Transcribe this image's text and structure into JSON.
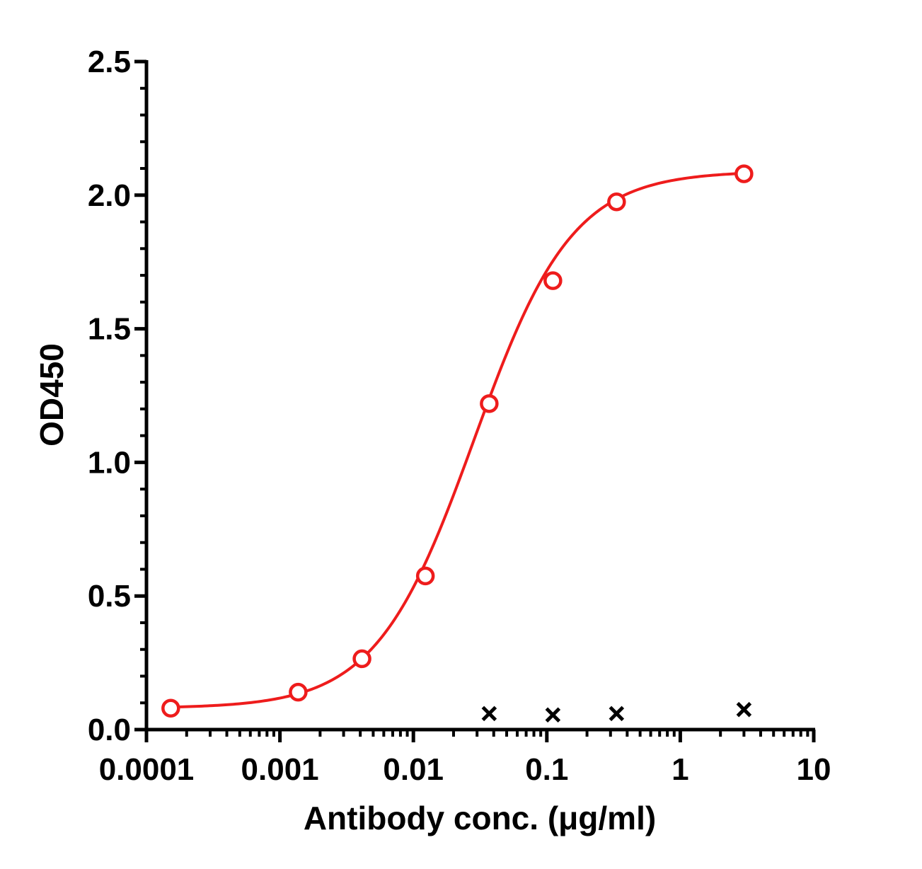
{
  "chart_data": {
    "type": "scatter",
    "title": "",
    "xlabel": "Antibody conc. (μg/ml)",
    "ylabel": "OD450",
    "x_scale": "log",
    "xlim": [
      0.0001,
      10
    ],
    "ylim": [
      0,
      2.5
    ],
    "x_ticks": [
      {
        "value": 0.0001,
        "label": "0.0001"
      },
      {
        "value": 0.001,
        "label": "0.001"
      },
      {
        "value": 0.01,
        "label": "0.01"
      },
      {
        "value": 0.1,
        "label": "0.1"
      },
      {
        "value": 1,
        "label": "1"
      },
      {
        "value": 10,
        "label": "10"
      }
    ],
    "y_ticks": [
      {
        "value": 0,
        "label": "0.0"
      },
      {
        "value": 0.5,
        "label": "0.5"
      },
      {
        "value": 1.0,
        "label": "1.0"
      },
      {
        "value": 1.5,
        "label": "1.5"
      },
      {
        "value": 2.0,
        "label": "2.0"
      },
      {
        "value": 2.5,
        "label": "2.5"
      }
    ],
    "grid": false,
    "series": [
      {
        "marker": "open-circle",
        "color": "#ee1c1c",
        "fit": "sigmoid",
        "fit_params": {
          "bottom": 0.08,
          "top": 2.09,
          "ec50": 0.0285,
          "hill": 1.18
        },
        "points": [
          {
            "x": 0.000152,
            "y": 0.08
          },
          {
            "x": 0.00137,
            "y": 0.14
          },
          {
            "x": 0.00412,
            "y": 0.265
          },
          {
            "x": 0.0123,
            "y": 0.575
          },
          {
            "x": 0.037,
            "y": 1.22
          },
          {
            "x": 0.111,
            "y": 1.68
          },
          {
            "x": 0.333,
            "y": 1.975
          },
          {
            "x": 3.0,
            "y": 2.08
          }
        ]
      },
      {
        "marker": "x",
        "color": "#000000",
        "points": [
          {
            "x": 0.037,
            "y": 0.06
          },
          {
            "x": 0.111,
            "y": 0.055
          },
          {
            "x": 0.333,
            "y": 0.06
          },
          {
            "x": 3.0,
            "y": 0.075
          }
        ]
      }
    ]
  }
}
